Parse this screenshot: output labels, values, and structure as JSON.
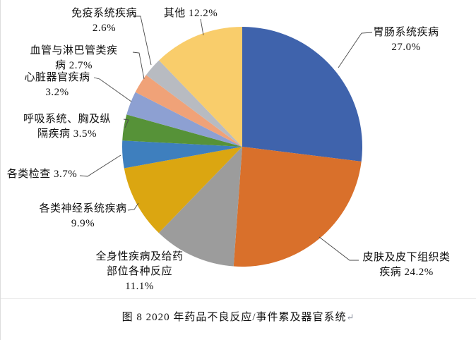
{
  "figure": {
    "caption": "图 8  2020 年药品不良反应/事件累及器官系统",
    "return_mark": "↵"
  },
  "chart_data": {
    "type": "pie",
    "title": "2020 年药品不良反应/事件累及器官系统",
    "direction": "clockwise",
    "start_angle": "12-oclock",
    "legend_position": "none",
    "labels_style": "outside-with-leader-lines",
    "slices": [
      {
        "label": "胃肠系统疾病",
        "value": 27.0,
        "color": "#3F63AC",
        "display_lines": [
          "胃肠系统疾病",
          "27.0%"
        ]
      },
      {
        "label": "皮肤及皮下组织类疾病",
        "value": 24.2,
        "color": "#D9702B",
        "display_lines": [
          "皮肤及皮下组织类",
          "疾病 24.2%"
        ]
      },
      {
        "label": "全身性疾病及给药部位各种反应",
        "value": 11.1,
        "color": "#9C9C9C",
        "display_lines": [
          "全身性疾病及给药",
          "部位各种反应",
          "11.1%"
        ]
      },
      {
        "label": "各类神经系统疾病",
        "value": 9.9,
        "color": "#DBA611",
        "display_lines": [
          "各类神经系统疾病",
          "9.9%"
        ]
      },
      {
        "label": "各类检查",
        "value": 3.7,
        "color": "#3E7FBE",
        "display_lines": [
          "各类检查 3.7%"
        ]
      },
      {
        "label": "呼吸系统、胸及纵隔疾病",
        "value": 3.5,
        "color": "#569238",
        "display_lines": [
          "呼吸系统、胸及纵",
          "隔疾病 3.5%"
        ]
      },
      {
        "label": "心脏器官疾病",
        "value": 3.2,
        "color": "#8DA0D2",
        "display_lines": [
          "心脏器官疾病",
          "3.2%"
        ]
      },
      {
        "label": "血管与淋巴管类疾病",
        "value": 2.7,
        "color": "#F0A278",
        "display_lines": [
          "血管与淋巴管类疾",
          "病 2.7%"
        ]
      },
      {
        "label": "免疫系统疾病",
        "value": 2.6,
        "color": "#B8BBC1",
        "display_lines": [
          "免疫系统疾病",
          "2.6%"
        ]
      },
      {
        "label": "其他",
        "value": 12.2,
        "color": "#F9CD6B",
        "display_lines": [
          "其他 12.2%"
        ]
      }
    ]
  }
}
